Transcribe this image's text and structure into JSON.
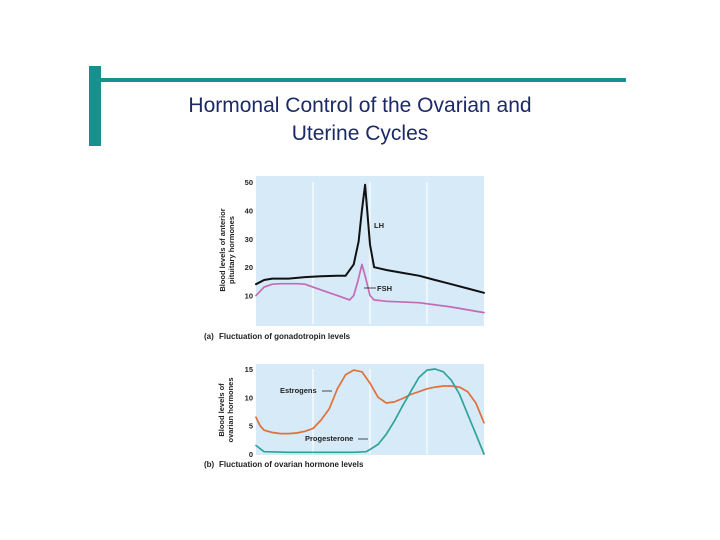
{
  "slide": {
    "title_line1": "Hormonal Control of the Ovarian and",
    "title_line2": "Uterine Cycles"
  },
  "colors": {
    "accent": "#1a8f8f",
    "title": "#1c2a66",
    "panel_bg": "#d6eaf8",
    "lh": "#111111",
    "fsh": "#c46bb5",
    "estrogens": "#e0703a",
    "progesterone": "#2fa39a"
  },
  "chart_data": [
    {
      "type": "line",
      "caption_tag": "(a)",
      "caption": "Fluctuation of gonadotropin levels",
      "ylabel_line1": "Blood levels of anterior",
      "ylabel_line2": "pituitary hormones",
      "ylim": [
        0,
        50
      ],
      "yticks": [
        "10",
        "20",
        "30",
        "40",
        "50"
      ],
      "grid": "vertical",
      "series": [
        {
          "name": "LH",
          "x": [
            0,
            1,
            2,
            4,
            6,
            8,
            10,
            11,
            12,
            12.6,
            13,
            13.4,
            14,
            14.5,
            16,
            18,
            20,
            22,
            24,
            26,
            28
          ],
          "values": [
            14,
            15.5,
            16,
            16,
            16.5,
            16.8,
            17,
            17,
            21,
            29,
            40,
            49,
            28,
            20,
            19,
            18,
            17,
            15.5,
            14,
            12.5,
            11
          ]
        },
        {
          "name": "FSH",
          "x": [
            0,
            1,
            2,
            3,
            4,
            5,
            6,
            8,
            10,
            11.5,
            12,
            12.5,
            13,
            13.4,
            14,
            14.5,
            16,
            20,
            24,
            28
          ],
          "values": [
            10,
            13,
            14,
            14.2,
            14.2,
            14.2,
            14,
            12,
            10,
            8.5,
            10,
            15,
            21,
            17,
            10,
            8.5,
            8,
            7.5,
            6,
            4
          ]
        }
      ]
    },
    {
      "type": "line",
      "caption_tag": "(b)",
      "caption": "Fluctuation of ovarian hormone levels",
      "ylabel_line1": "Blood levels of",
      "ylabel_line2": "ovarian hormones",
      "ylim": [
        0,
        15
      ],
      "yticks": [
        "0",
        "5",
        "10",
        "15"
      ],
      "grid": "vertical",
      "series": [
        {
          "name": "Estrogens",
          "x": [
            0,
            0.5,
            1,
            2,
            3,
            4,
            5,
            6,
            7,
            8,
            9,
            10,
            11,
            12,
            13,
            14,
            15,
            16,
            17,
            18,
            19,
            20,
            21,
            22,
            23,
            24,
            25,
            26,
            27,
            28
          ],
          "values": [
            6.5,
            5,
            4.2,
            3.8,
            3.6,
            3.6,
            3.7,
            4,
            4.5,
            6,
            8,
            11.5,
            14,
            14.8,
            14.5,
            12.5,
            10,
            9,
            9.2,
            9.8,
            10.5,
            11,
            11.5,
            11.8,
            12,
            12,
            11.8,
            11,
            9,
            5.5
          ]
        },
        {
          "name": "Progesterone",
          "x": [
            0,
            1,
            4,
            8,
            12,
            13.5,
            14,
            15,
            16,
            17,
            18,
            19,
            20,
            21,
            22,
            23,
            24,
            25,
            26,
            27,
            28
          ],
          "values": [
            1.5,
            0.4,
            0.3,
            0.3,
            0.3,
            0.4,
            0.8,
            1.7,
            3.5,
            5.8,
            8.5,
            11,
            13.5,
            14.8,
            15,
            14.5,
            13,
            10.5,
            7,
            3.5,
            0
          ]
        }
      ]
    }
  ]
}
